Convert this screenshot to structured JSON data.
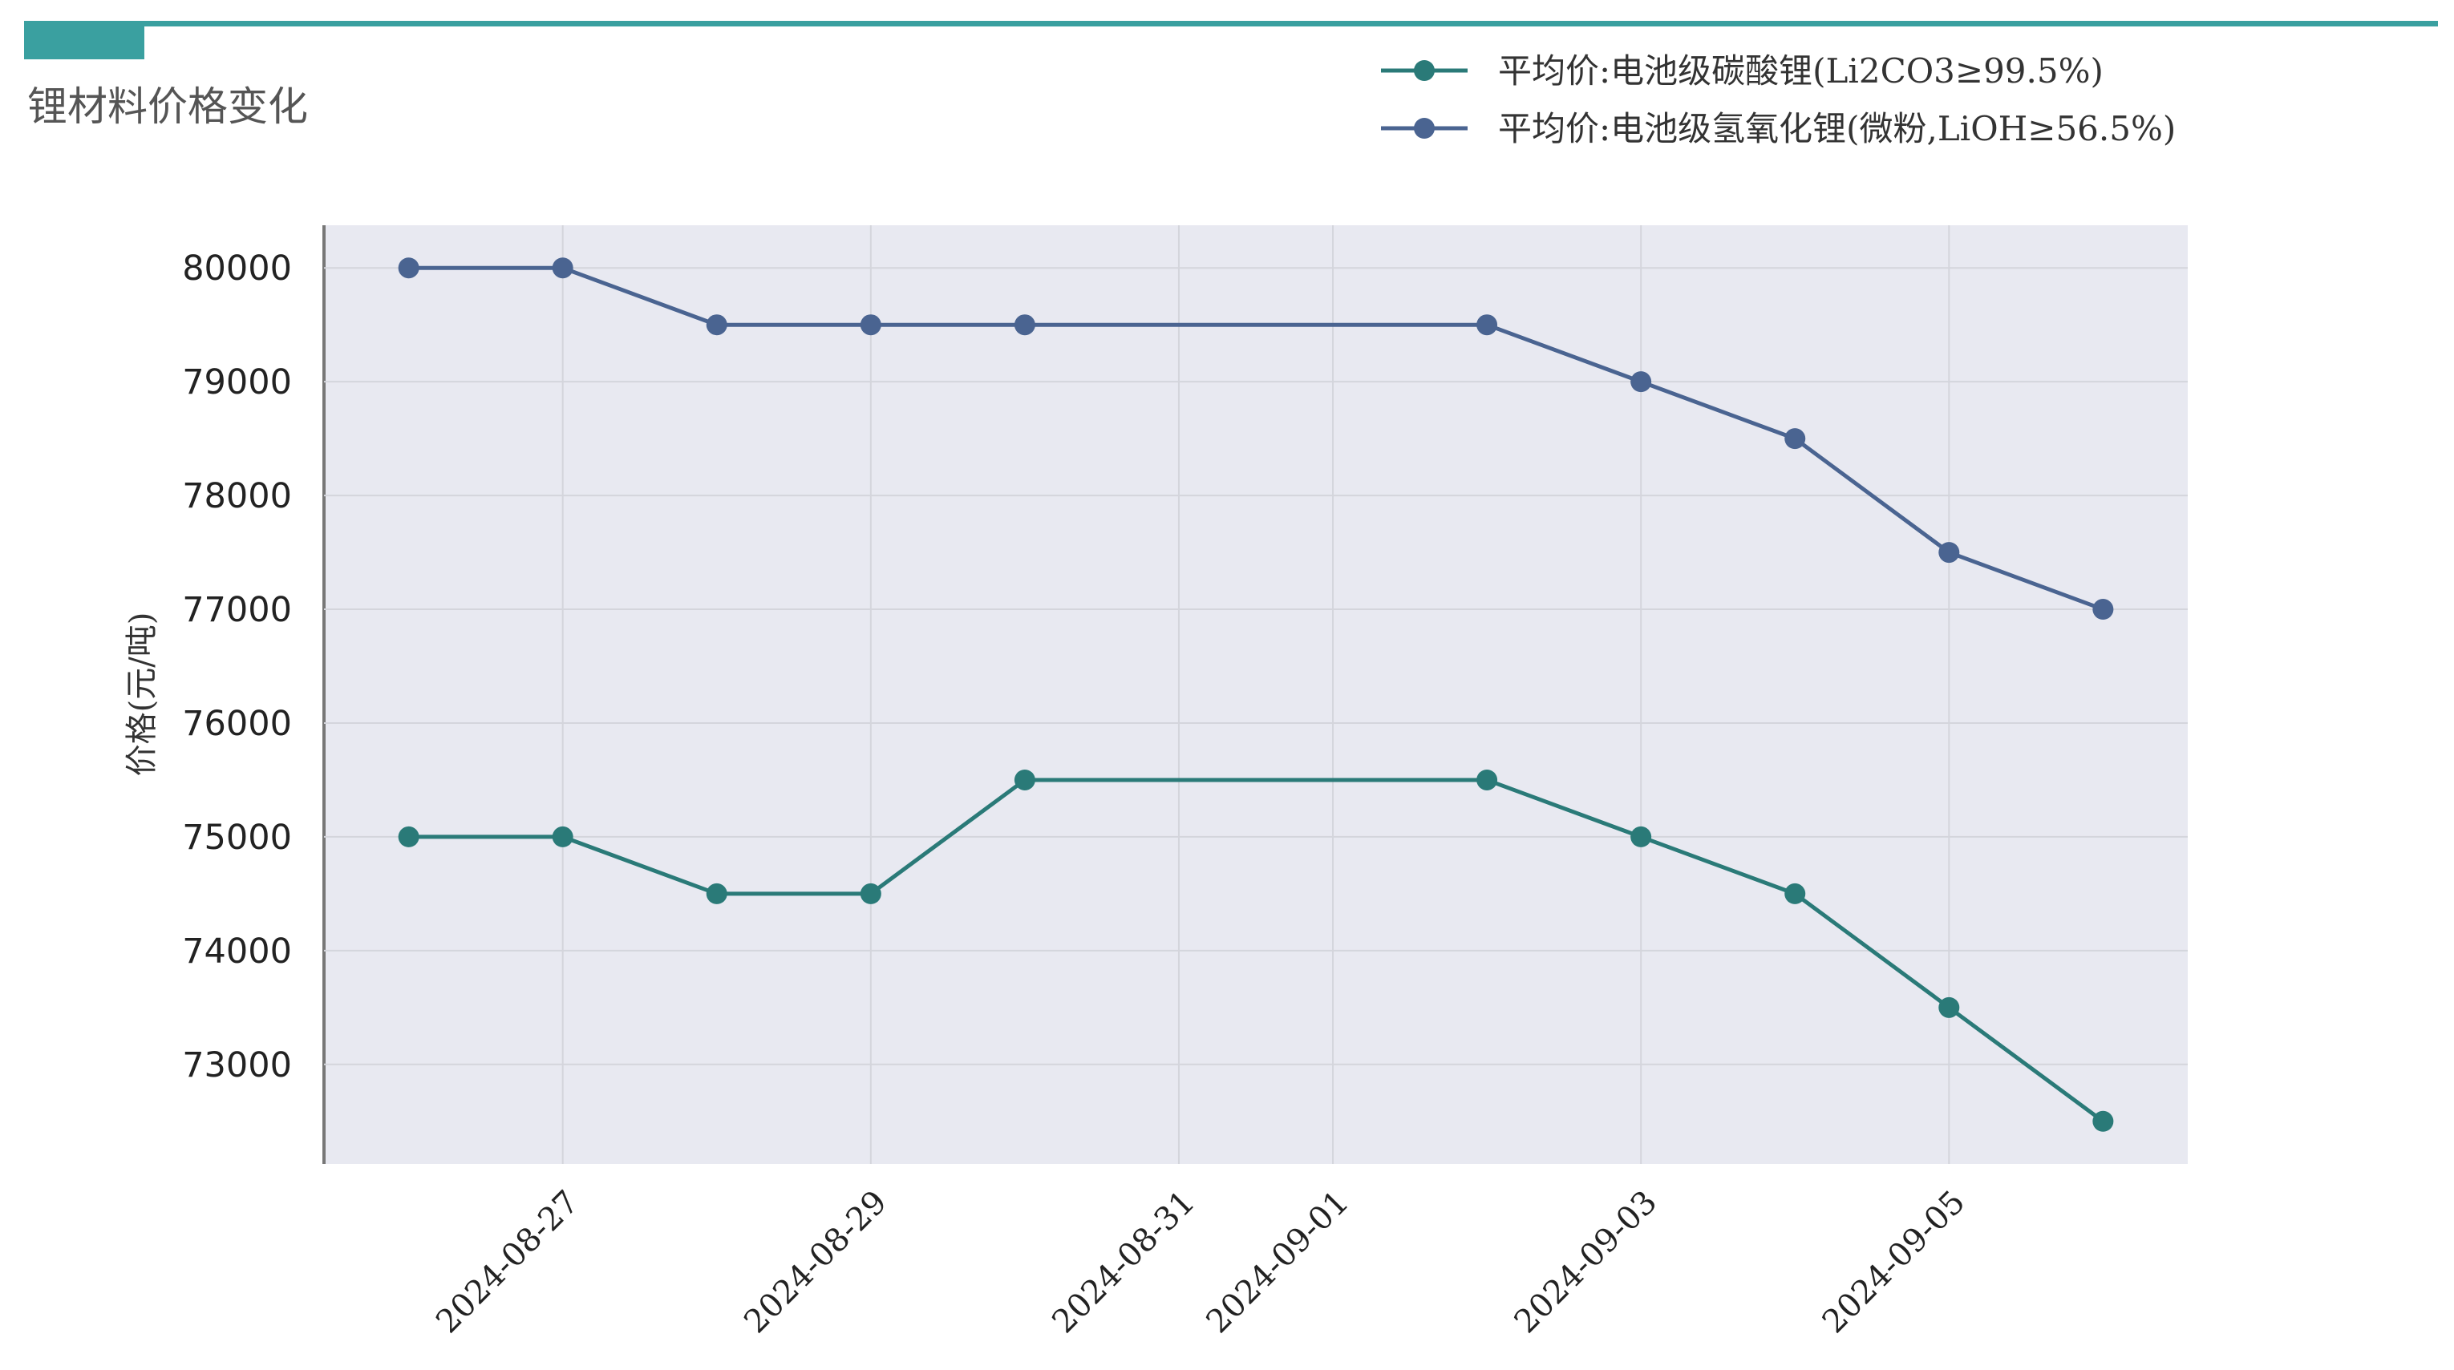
{
  "chart_data": {
    "type": "line",
    "title": "锂材料价格变化",
    "y_label": "价格(元/吨)",
    "x": [
      "2024-08-26",
      "2024-08-27",
      "2024-08-28",
      "2024-08-29",
      "2024-08-30",
      "2024-09-02",
      "2024-09-03",
      "2024-09-04",
      "2024-09-05",
      "2024-09-06"
    ],
    "series": [
      {
        "name": "平均价:电池级碳酸锂(Li2CO3≥99.5%)",
        "color": "#2a7a78",
        "values": [
          75000,
          75000,
          74500,
          74500,
          75500,
          75500,
          75000,
          74500,
          73500,
          72500
        ]
      },
      {
        "name": "平均价:电池级氢氧化锂(微粉,LiOH≥56.5%)",
        "color": "#4a6491",
        "values": [
          80000,
          80000,
          79500,
          79500,
          79500,
          79500,
          79000,
          78500,
          77500,
          77000
        ]
      }
    ],
    "xticks": [
      "2024-08-27",
      "2024-08-29",
      "2024-08-31",
      "2024-09-01",
      "2024-09-03",
      "2024-09-05"
    ],
    "ylim": [
      72125,
      80375
    ],
    "yticks": [
      73000,
      74000,
      75000,
      76000,
      77000,
      78000,
      79000,
      80000
    ],
    "grid": true,
    "legend": "top-right"
  }
}
